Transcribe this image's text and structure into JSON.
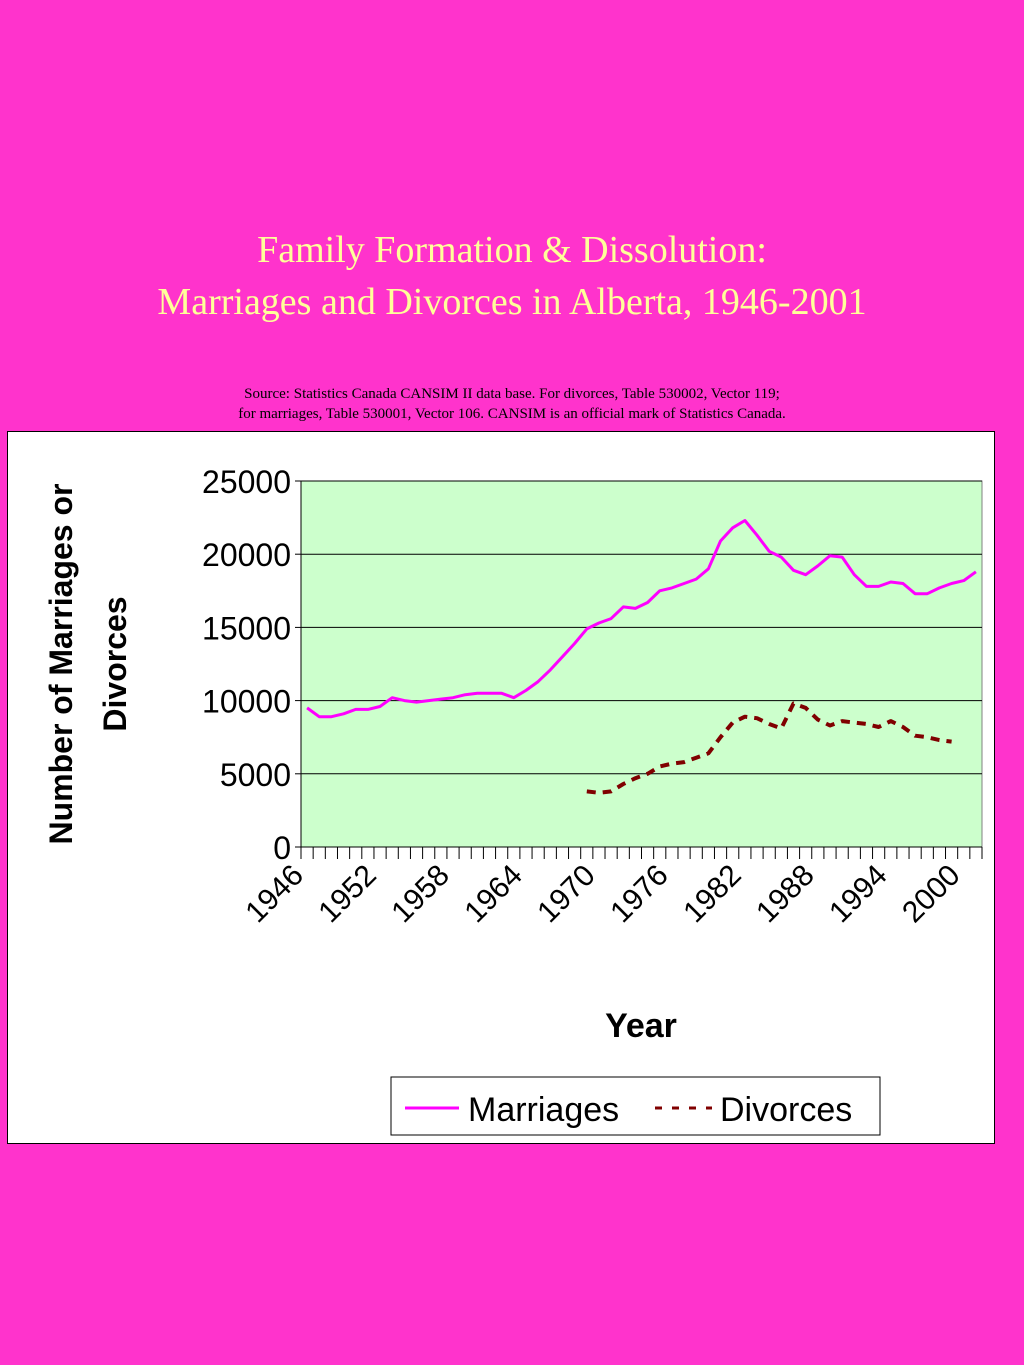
{
  "header": {
    "title_line1": "Family Formation & Dissolution:",
    "title_line2": "Marriages and Divorces in Alberta, 1946-2001",
    "source_line1": "Source:  Statistics Canada CANSIM II data base.  For divorces, Table 530002, Vector 119;",
    "source_line2": "for marriages, Table 530001, Vector 106.  CANSIM is an official mark of Statistics Canada."
  },
  "colors": {
    "background": "#ff33cc",
    "title": "#ffff99",
    "plot_area": "#ccffcc",
    "marriages": "#ff00ff",
    "divorces": "#800000"
  },
  "chart_data": {
    "type": "line",
    "title": "",
    "xlabel": "Year",
    "ylabel": "Number of Marriages or Divorces",
    "ylim": [
      0,
      25000
    ],
    "yticks": [
      0,
      5000,
      10000,
      15000,
      20000,
      25000
    ],
    "xlim": [
      1946,
      2001
    ],
    "xtick_labels": [
      "1946",
      "1952",
      "1958",
      "1964",
      "1970",
      "1976",
      "1982",
      "1988",
      "1994",
      "2000"
    ],
    "grid": "horizontal",
    "legend_position": "bottom-right",
    "series": [
      {
        "name": "Marriages",
        "style": "solid",
        "x": [
          1946,
          1947,
          1948,
          1949,
          1950,
          1951,
          1952,
          1953,
          1954,
          1955,
          1956,
          1957,
          1958,
          1959,
          1960,
          1961,
          1962,
          1963,
          1964,
          1965,
          1966,
          1967,
          1968,
          1969,
          1970,
          1971,
          1972,
          1973,
          1974,
          1975,
          1976,
          1977,
          1978,
          1979,
          1980,
          1981,
          1982,
          1983,
          1984,
          1985,
          1986,
          1987,
          1988,
          1989,
          1990,
          1991,
          1992,
          1993,
          1994,
          1995,
          1996,
          1997,
          1998,
          1999,
          2000,
          2001
        ],
        "values": [
          9500,
          8900,
          8900,
          9100,
          9400,
          9400,
          9600,
          10200,
          10000,
          9900,
          10000,
          10100,
          10200,
          10400,
          10500,
          10500,
          10500,
          10200,
          10700,
          11300,
          12100,
          13000,
          13900,
          14900,
          15300,
          15600,
          16400,
          16300,
          16700,
          17500,
          17700,
          18000,
          18300,
          19000,
          20900,
          21800,
          22300,
          21300,
          20200,
          19800,
          18900,
          18600,
          19200,
          19900,
          19800,
          18600,
          17800,
          17800,
          18100,
          18000,
          17300,
          17300,
          17700,
          18000,
          18200,
          18800
        ]
      },
      {
        "name": "Divorces",
        "style": "dashed",
        "x": [
          1969,
          1970,
          1971,
          1972,
          1973,
          1974,
          1975,
          1976,
          1977,
          1978,
          1979,
          1980,
          1981,
          1982,
          1983,
          1984,
          1985,
          1986,
          1987,
          1988,
          1989,
          1990,
          1991,
          1992,
          1993,
          1994,
          1995,
          1996,
          1997,
          1998,
          1999
        ],
        "values": [
          3800,
          3700,
          3800,
          4300,
          4700,
          5000,
          5500,
          5700,
          5800,
          6100,
          6400,
          7500,
          8500,
          8900,
          8800,
          8400,
          8100,
          9800,
          9500,
          8700,
          8300,
          8600,
          8500,
          8400,
          8200,
          8600,
          8200,
          7600,
          7500,
          7300,
          7200
        ]
      }
    ]
  }
}
